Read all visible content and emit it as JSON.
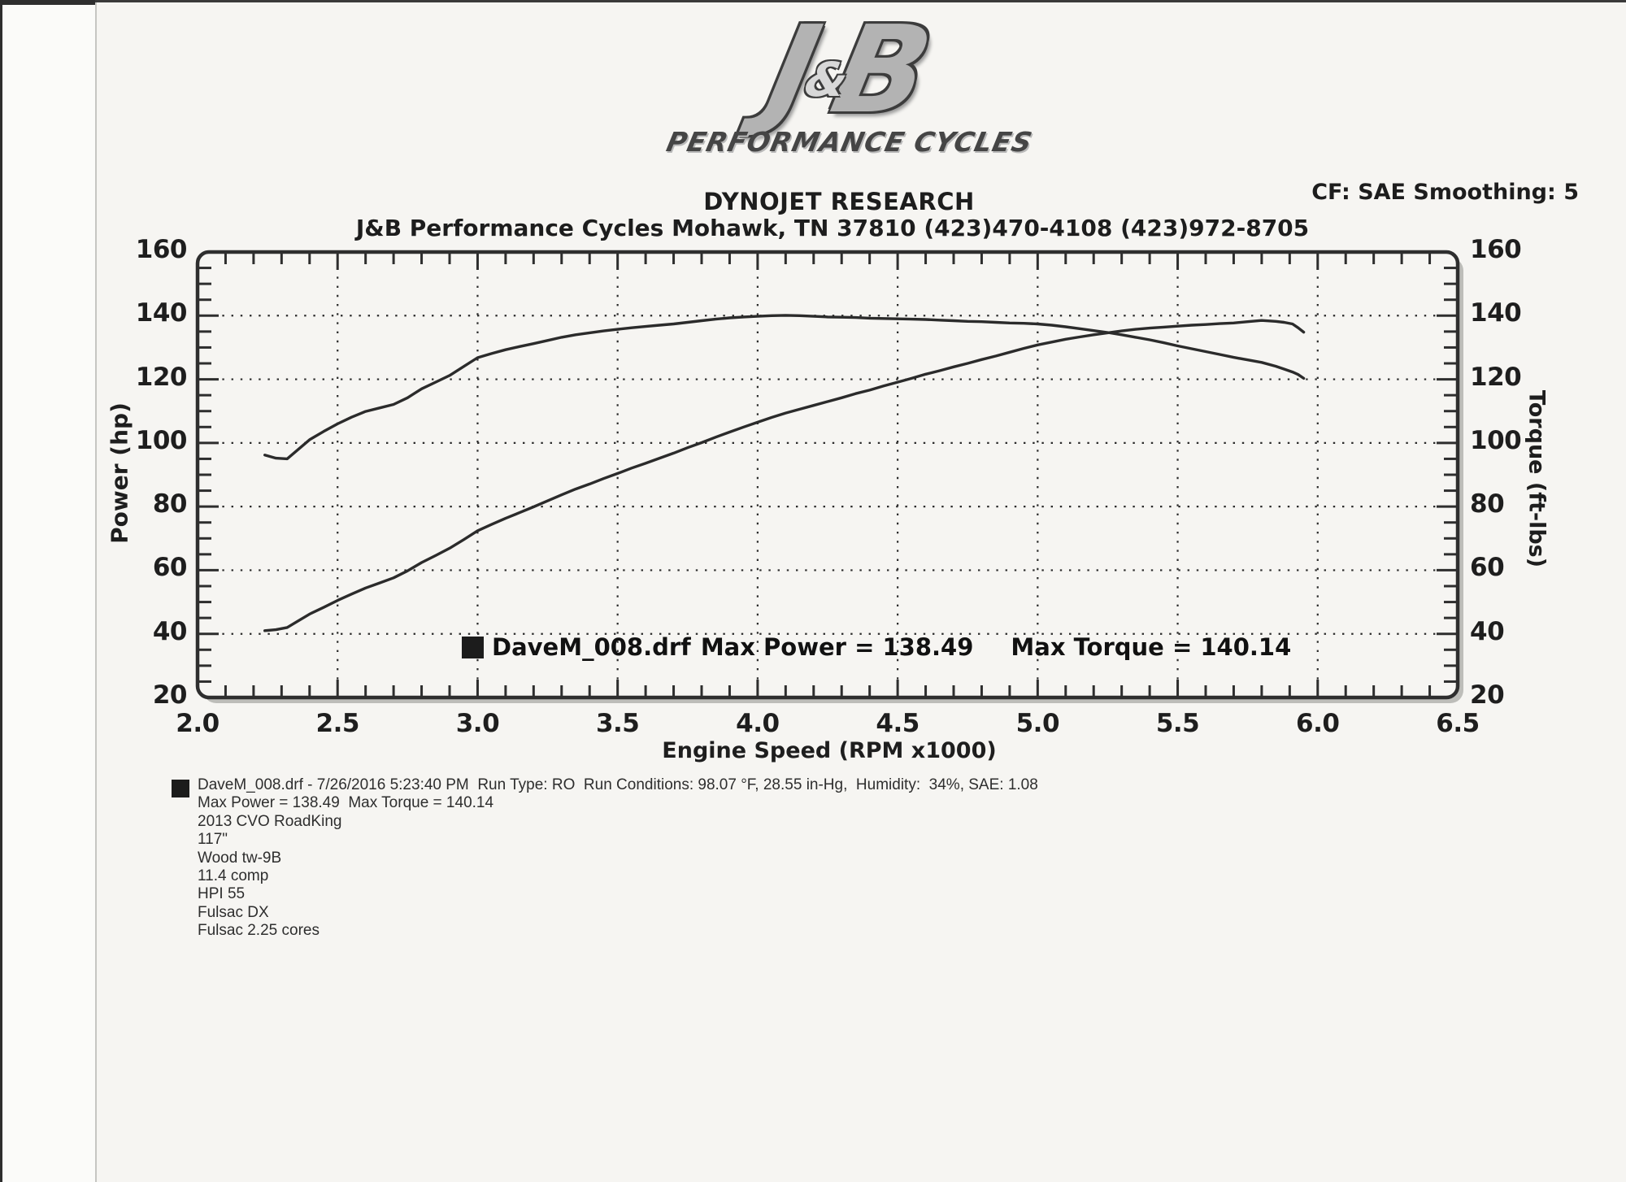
{
  "header": {
    "logo": {
      "letter_j": "J",
      "amp": "&",
      "letter_b": "B",
      "subtitle": "PERFORMANCE CYCLES"
    },
    "lab_title": "DYNOJET RESEARCH",
    "shop_line": "J&B Performance Cycles Mohawk, TN 37810 (423)470-4108 (423)972-8705",
    "cf_line": "CF: SAE  Smoothing: 5"
  },
  "chart_data": {
    "type": "line",
    "xlabel": "Engine Speed (RPM x1000)",
    "ylabel_left": "Power (hp)",
    "ylabel_right": "Torque (ft-lbs)",
    "x_range": [
      2.0,
      6.5
    ],
    "y_range": [
      20,
      160
    ],
    "x_tick_step": 0.5,
    "y_tick_step": 20,
    "x_minor_step": 0.1,
    "y_minor_step": 5,
    "grid": "dotted",
    "x_tick_labels": [
      "2.0",
      "2.5",
      "3.0",
      "3.5",
      "4.0",
      "4.5",
      "5.0",
      "5.5",
      "6.0",
      "6.5"
    ],
    "y_tick_labels": [
      "20",
      "40",
      "60",
      "80",
      "100",
      "120",
      "140",
      "160"
    ],
    "curve_color": "#2b2b2b",
    "legend": {
      "file": "DaveM_008.drf",
      "max_power": "Max Power = 138.49",
      "max_torque": "Max Torque = 140.14",
      "position": "inside-bottom-center"
    },
    "max_power": 138.49,
    "max_torque": 140.14,
    "rpm": [
      2.24,
      2.28,
      2.32,
      2.4,
      2.45,
      2.5,
      2.55,
      2.6,
      2.65,
      2.7,
      2.75,
      2.8,
      2.85,
      2.9,
      2.95,
      3.0,
      3.05,
      3.1,
      3.15,
      3.2,
      3.25,
      3.3,
      3.35,
      3.4,
      3.45,
      3.5,
      3.55,
      3.6,
      3.65,
      3.7,
      3.75,
      3.8,
      3.85,
      3.9,
      3.95,
      4.0,
      4.05,
      4.1,
      4.15,
      4.2,
      4.25,
      4.3,
      4.35,
      4.4,
      4.45,
      4.5,
      4.55,
      4.6,
      4.65,
      4.7,
      4.75,
      4.8,
      4.85,
      4.9,
      4.95,
      5.0,
      5.05,
      5.1,
      5.15,
      5.2,
      5.25,
      5.3,
      5.35,
      5.4,
      5.45,
      5.5,
      5.55,
      5.6,
      5.65,
      5.7,
      5.75,
      5.8,
      5.85,
      5.88,
      5.91,
      5.93,
      5.95
    ],
    "series": [
      {
        "name": "Power (hp)",
        "values": [
          41.0,
          41.3,
          42.0,
          46.2,
          48.3,
          50.5,
          52.5,
          54.4,
          56.0,
          57.6,
          59.8,
          62.4,
          64.6,
          66.9,
          69.6,
          72.4,
          74.4,
          76.3,
          78.1,
          79.9,
          81.8,
          83.7,
          85.5,
          87.1,
          88.8,
          90.4,
          92.1,
          93.6,
          95.2,
          96.8,
          98.5,
          100.1,
          101.8,
          103.4,
          105.0,
          106.5,
          108.0,
          109.4,
          110.6,
          111.8,
          113.0,
          114.2,
          115.5,
          116.6,
          117.9,
          119.1,
          120.3,
          121.6,
          122.7,
          123.9,
          125.0,
          126.2,
          127.3,
          128.5,
          129.7,
          130.8,
          131.7,
          132.6,
          133.3,
          134.0,
          134.6,
          135.2,
          135.7,
          136.1,
          136.4,
          136.7,
          137.0,
          137.2,
          137.5,
          137.7,
          138.1,
          138.5,
          138.2,
          137.9,
          137.4,
          136.2,
          134.8
        ]
      },
      {
        "name": "Torque (ft-lbs)",
        "values": [
          96.2,
          95.2,
          95.0,
          101.0,
          103.6,
          106.0,
          108.1,
          109.9,
          111.0,
          112.1,
          114.2,
          117.0,
          119.1,
          121.2,
          124.0,
          126.8,
          128.1,
          129.3,
          130.3,
          131.2,
          132.2,
          133.2,
          134.0,
          134.6,
          135.2,
          135.7,
          136.2,
          136.6,
          137.0,
          137.4,
          137.9,
          138.4,
          138.9,
          139.3,
          139.6,
          139.8,
          140.0,
          140.1,
          140.0,
          139.8,
          139.6,
          139.5,
          139.4,
          139.2,
          139.1,
          139.0,
          138.9,
          138.8,
          138.6,
          138.4,
          138.2,
          138.1,
          137.9,
          137.7,
          137.6,
          137.4,
          137.0,
          136.5,
          135.9,
          135.3,
          134.7,
          134.0,
          133.2,
          132.4,
          131.5,
          130.5,
          129.6,
          128.7,
          127.8,
          126.9,
          126.1,
          125.3,
          124.1,
          123.2,
          122.3,
          121.5,
          120.3
        ]
      }
    ]
  },
  "footer": {
    "lines": [
      "DaveM_008.drf - 7/26/2016 5:23:40 PM  Run Type: RO  Run Conditions: 98.07 °F, 28.55 in-Hg,  Humidity:  34%, SAE: 1.08",
      "Max Power = 138.49  Max Torque = 140.14",
      "2013 CVO RoadKing",
      "117\"",
      "Wood tw-9B",
      "11.4 comp",
      "HPI 55",
      "Fulsac DX",
      "Fulsac 2.25 cores"
    ]
  }
}
